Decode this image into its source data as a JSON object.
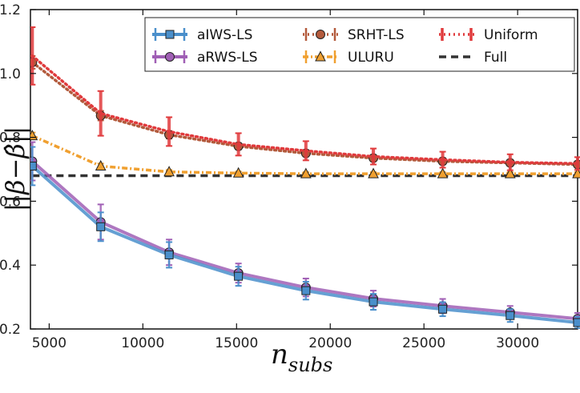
{
  "chart_data": {
    "type": "line",
    "xlabel_main": "n",
    "xlabel_sub": "subs",
    "ylabel": "||β−β̂||",
    "xlim": [
      4000,
      33200
    ],
    "ylim": [
      0.2,
      1.2
    ],
    "xticks": [
      5000,
      10000,
      15000,
      20000,
      25000,
      30000
    ],
    "xtick_labels": [
      "5000",
      "10000",
      "15000",
      "20000",
      "25000",
      "30000"
    ],
    "yticks": [
      0.2,
      0.4,
      0.6,
      0.8,
      1.0,
      1.2
    ],
    "ytick_labels": [
      "0.2",
      "0.4",
      "0.6",
      "0.8",
      "1.0",
      "1.2"
    ],
    "x": [
      4100,
      7750,
      11400,
      15100,
      18700,
      22300,
      26000,
      29600,
      33200
    ],
    "series": [
      {
        "name": "aIWS-LS",
        "color": "#4a8fcb",
        "marker": "square",
        "style": "solid",
        "values": [
          0.71,
          0.52,
          0.432,
          0.365,
          0.32,
          0.285,
          0.262,
          0.242,
          0.22
        ],
        "errors": [
          0.06,
          0.045,
          0.04,
          0.03,
          0.028,
          0.025,
          0.022,
          0.02,
          0.018
        ]
      },
      {
        "name": "aRWS-LS",
        "color": "#a05fb5",
        "marker": "circle",
        "style": "solid",
        "values": [
          0.725,
          0.535,
          0.44,
          0.375,
          0.33,
          0.295,
          0.272,
          0.252,
          0.232
        ],
        "errors": [
          0.06,
          0.055,
          0.04,
          0.03,
          0.028,
          0.025,
          0.022,
          0.02,
          0.018
        ]
      },
      {
        "name": "SRHT-LS",
        "color": "#b35a3c",
        "marker": "circle",
        "style": "dotted",
        "values": [
          1.035,
          0.868,
          0.808,
          0.772,
          0.75,
          0.735,
          0.725,
          0.72,
          0.715
        ],
        "errors": [
          0.02,
          0.015,
          0.012,
          0.01,
          0.01,
          0.01,
          0.01,
          0.01,
          0.01
        ]
      },
      {
        "name": "ULURU",
        "color": "#f0a030",
        "marker": "triangle",
        "style": "dashdot",
        "values": [
          0.805,
          0.71,
          0.692,
          0.688,
          0.686,
          0.686,
          0.686,
          0.686,
          0.686
        ],
        "errors": [
          0.01,
          0.008,
          0.006,
          0.005,
          0.005,
          0.005,
          0.005,
          0.005,
          0.005
        ]
      },
      {
        "name": "Uniform",
        "color": "#e03a3c",
        "marker": "none",
        "style": "dotted",
        "values": [
          1.055,
          0.875,
          0.818,
          0.778,
          0.758,
          0.74,
          0.73,
          0.722,
          0.718
        ],
        "errors": [
          0.09,
          0.07,
          0.045,
          0.035,
          0.03,
          0.025,
          0.025,
          0.025,
          0.02
        ]
      },
      {
        "name": "Full",
        "color": "#333333",
        "marker": "none",
        "style": "dashed",
        "values": [
          0.68,
          0.68,
          0.68,
          0.68,
          0.68,
          0.68,
          0.68,
          0.68,
          0.68
        ],
        "errors": null
      }
    ],
    "legend_location": "top-right",
    "legend_layout": "3 columns"
  }
}
